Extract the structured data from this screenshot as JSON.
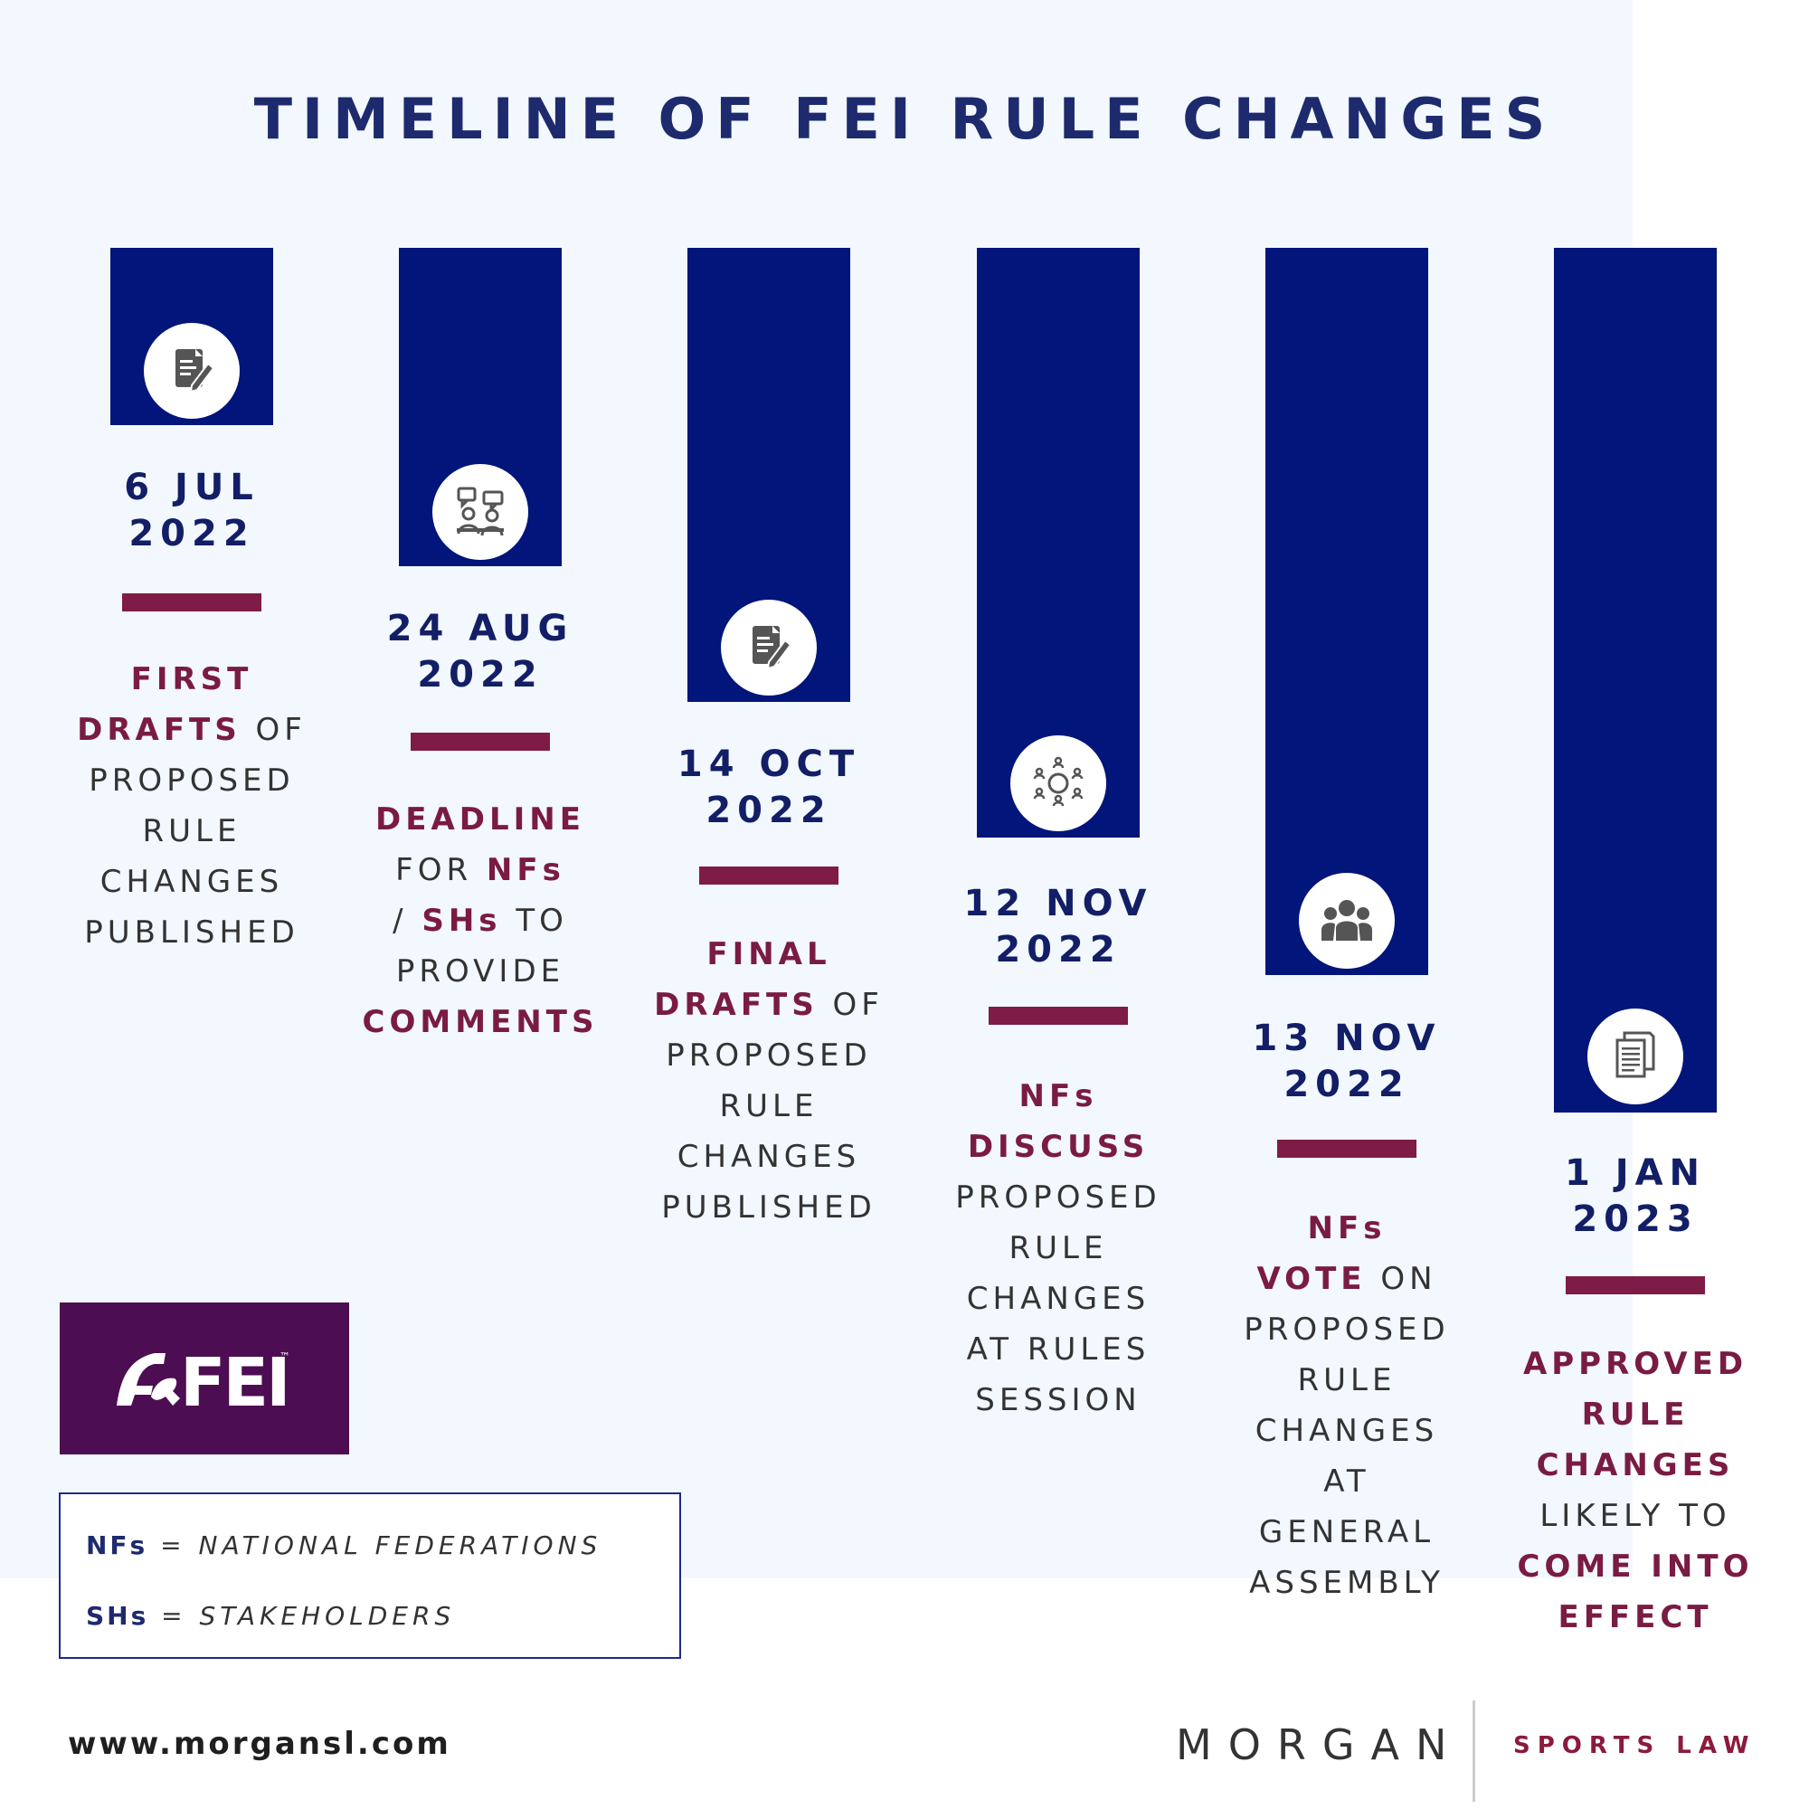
{
  "title": "TIMELINE OF FEI RULE CHANGES",
  "colors": {
    "bar": "#02157a",
    "accent": "#7f1b47",
    "date": "#121e66",
    "background": "#f2f8fd",
    "logo_bg": "#4d0d52"
  },
  "milestones": [
    {
      "icon": "document-edit-icon",
      "date_line1": "6 JUL",
      "date_line2": "2022",
      "description": [
        {
          "t": "FIRST",
          "hl": true,
          "br": true
        },
        {
          "t": "DRAFTS",
          "hl": true
        },
        {
          "t": " OF",
          "br": true
        },
        {
          "t": "PROPOSED",
          "br": true
        },
        {
          "t": "RULE",
          "br": true
        },
        {
          "t": "CHANGES",
          "br": true
        },
        {
          "t": "PUBLISHED"
        }
      ]
    },
    {
      "icon": "discussion-icon",
      "date_line1": "24 AUG",
      "date_line2": "2022",
      "description": [
        {
          "t": "DEADLINE",
          "hl": true,
          "br": true
        },
        {
          "t": "FOR "
        },
        {
          "t": "NFs",
          "hl": true,
          "br": true
        },
        {
          "t": "/ "
        },
        {
          "t": "SHs",
          "hl": true
        },
        {
          "t": " TO",
          "br": true
        },
        {
          "t": "PROVIDE",
          "br": true
        },
        {
          "t": "COMMENTS",
          "hl": true
        }
      ]
    },
    {
      "icon": "document-edit-icon",
      "date_line1": "14 OCT",
      "date_line2": "2022",
      "description": [
        {
          "t": "FINAL",
          "hl": true,
          "br": true
        },
        {
          "t": "DRAFTS",
          "hl": true
        },
        {
          "t": " OF",
          "br": true
        },
        {
          "t": "PROPOSED",
          "br": true
        },
        {
          "t": "RULE",
          "br": true
        },
        {
          "t": "CHANGES",
          "br": true
        },
        {
          "t": "PUBLISHED"
        }
      ]
    },
    {
      "icon": "meeting-circle-icon",
      "date_line1": "12 NOV",
      "date_line2": "2022",
      "description": [
        {
          "t": "NFs",
          "hl": true,
          "br": true
        },
        {
          "t": "DISCUSS",
          "hl": true,
          "br": true
        },
        {
          "t": "PROPOSED",
          "br": true
        },
        {
          "t": "RULE",
          "br": true
        },
        {
          "t": "CHANGES",
          "br": true
        },
        {
          "t": "AT RULES",
          "br": true
        },
        {
          "t": "SESSION"
        }
      ]
    },
    {
      "icon": "group-icon",
      "date_line1": "13 NOV",
      "date_line2": "2022",
      "description": [
        {
          "t": "NFs",
          "hl": true,
          "br": true
        },
        {
          "t": "VOTE",
          "hl": true
        },
        {
          "t": " ON",
          "br": true
        },
        {
          "t": "PROPOSED",
          "br": true
        },
        {
          "t": "RULE",
          "br": true
        },
        {
          "t": "CHANGES",
          "br": true
        },
        {
          "t": "AT",
          "br": true
        },
        {
          "t": "GENERAL",
          "br": true
        },
        {
          "t": "ASSEMBLY"
        }
      ]
    },
    {
      "icon": "document-stack-icon",
      "date_line1": "1 JAN",
      "date_line2": "2023",
      "description": [
        {
          "t": "APPROVED",
          "hl": true,
          "br": true
        },
        {
          "t": "RULE",
          "hl": true,
          "br": true
        },
        {
          "t": "CHANGES",
          "hl": true,
          "br": true
        },
        {
          "t": "LIKELY TO",
          "br": true
        },
        {
          "t": "COME INTO",
          "hl": true,
          "br": true
        },
        {
          "t": "EFFECT",
          "hl": true
        }
      ]
    }
  ],
  "logo": {
    "text": "FEI",
    "tm": "™"
  },
  "legend": {
    "rows": [
      {
        "abbr": "NFs",
        "eq": " = ",
        "full": "NATIONAL FEDERATIONS"
      },
      {
        "abbr": "SHs",
        "eq": " = ",
        "full": "STAKEHOLDERS"
      }
    ]
  },
  "footer": {
    "website": "www.morgansl.com",
    "brand_main": "MORGAN",
    "brand_sub": "SPORTS LAW"
  }
}
